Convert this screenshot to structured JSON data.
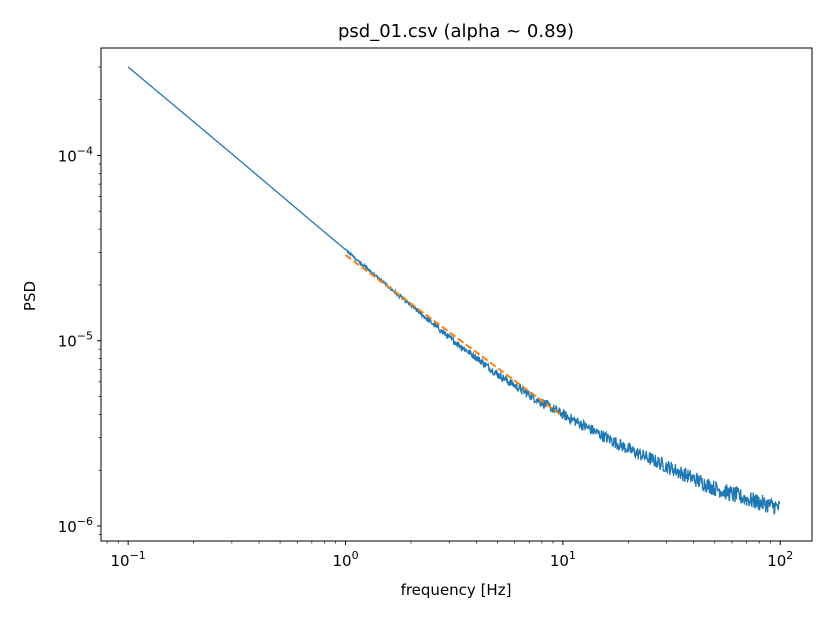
{
  "chart_data": {
    "type": "line",
    "title": "psd_01.csv (alpha ~ 0.89)",
    "xlabel": "frequency [Hz]",
    "ylabel": "PSD",
    "xscale": "log",
    "yscale": "log",
    "xlim": [
      0.075,
      140
    ],
    "ylim": [
      8.3e-07,
      0.00038
    ],
    "grid": false,
    "x_ticks": [
      {
        "value": 0.1,
        "base": "10",
        "exp": "−1"
      },
      {
        "value": 1,
        "base": "10",
        "exp": "0"
      },
      {
        "value": 10,
        "base": "10",
        "exp": "1"
      },
      {
        "value": 100,
        "base": "10",
        "exp": "2"
      }
    ],
    "y_ticks": [
      {
        "value": 1e-06,
        "base": "10",
        "exp": "−6"
      },
      {
        "value": 1e-05,
        "base": "10",
        "exp": "−5"
      },
      {
        "value": 0.0001,
        "base": "10",
        "exp": "−4"
      }
    ],
    "series": [
      {
        "color": "#1f77b4",
        "style": "solid",
        "x": [
          0.1,
          0.2,
          0.3,
          0.5,
          0.7,
          1,
          1.5,
          2,
          3,
          4,
          5,
          7,
          10,
          15,
          20,
          30,
          40,
          50,
          70,
          100
        ],
        "y": [
          0.0003,
          0.000152,
          0.000102,
          6.15e-05,
          4.4e-05,
          3.1e-05,
          2.05e-05,
          1.55e-05,
          1.04e-05,
          8.1e-06,
          6.6e-06,
          5.1e-06,
          4e-06,
          3.1e-06,
          2.6e-06,
          2.1e-06,
          1.8e-06,
          1.6e-06,
          1.4e-06,
          1.25e-06
        ]
      },
      {
        "color": "#ff7f0e",
        "style": "dashed",
        "x": [
          1,
          10
        ],
        "y": [
          2.9e-05,
          3.9e-06
        ]
      }
    ]
  }
}
